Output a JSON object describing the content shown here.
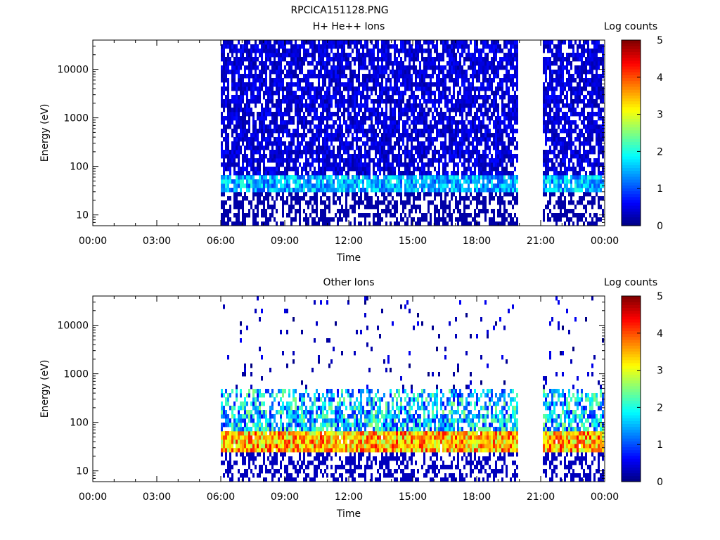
{
  "figure": {
    "title": "RPCICA151128.PNG"
  },
  "chart_data": [
    {
      "type": "heatmap",
      "title": "H+ He++ Ions",
      "xlabel": "Time",
      "ylabel": "Energy (eV)",
      "x_ticks": [
        "00:00",
        "03:00",
        "06:00",
        "09:00",
        "12:00",
        "15:00",
        "18:00",
        "21:00",
        "00:00"
      ],
      "x_range_hours": [
        0,
        24
      ],
      "y_scale": "log",
      "y_ticks": [
        10,
        100,
        1000,
        10000
      ],
      "y_range": [
        6,
        40000
      ],
      "data_intervals_hours": [
        [
          6.0,
          19.9
        ],
        [
          21.1,
          23.9
        ]
      ],
      "colorbar": {
        "label": "Log counts",
        "ticks": [
          "0",
          "1",
          "2",
          "3",
          "4",
          "5"
        ],
        "range": [
          0,
          5
        ],
        "colormap": "jet"
      },
      "features": [
        {
          "energy_range_eV": [
            30,
            70
          ],
          "log_counts": 1.5,
          "description_hint": "band"
        },
        {
          "energy_range_eV": [
            70,
            40000
          ],
          "log_counts": 0.3
        }
      ]
    },
    {
      "type": "heatmap",
      "title": "Other Ions",
      "xlabel": "Time",
      "ylabel": "Energy (eV)",
      "x_ticks": [
        "00:00",
        "03:00",
        "06:00",
        "09:00",
        "12:00",
        "15:00",
        "18:00",
        "21:00",
        "00:00"
      ],
      "x_range_hours": [
        0,
        24
      ],
      "y_scale": "log",
      "y_ticks": [
        10,
        100,
        1000,
        10000
      ],
      "y_range": [
        6,
        40000
      ],
      "data_intervals_hours": [
        [
          6.0,
          19.9
        ],
        [
          21.1,
          23.9
        ]
      ],
      "colorbar": {
        "label": "Log counts",
        "ticks": [
          "0",
          "1",
          "2",
          "3",
          "4",
          "5"
        ],
        "range": [
          0,
          5
        ],
        "colormap": "jet"
      },
      "features": [
        {
          "energy_range_eV": [
            30,
            70
          ],
          "log_counts": 3.6
        },
        {
          "energy_range_eV": [
            70,
            500
          ],
          "log_counts": 1.5
        },
        {
          "energy_range_eV": [
            500,
            40000
          ],
          "log_counts": 0.2
        }
      ]
    }
  ]
}
